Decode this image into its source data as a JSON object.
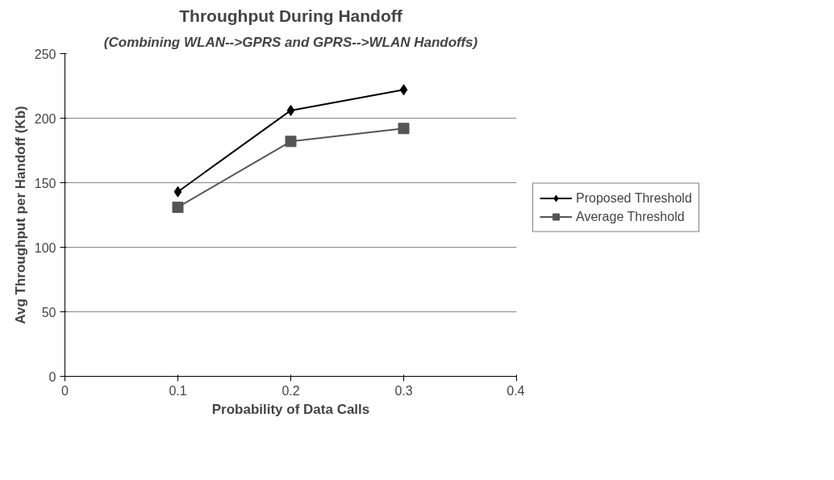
{
  "chart_data": {
    "type": "line",
    "title": "Throughput During Handoff",
    "subtitle": "(Combining WLAN-->GPRS and GPRS-->WLAN Handoffs)",
    "xlabel": "Probability of Data Calls",
    "ylabel": "Avg Throughput per Handoff (Kb)",
    "x": [
      0.1,
      0.2,
      0.3
    ],
    "series": [
      {
        "name": "Proposed Threshold",
        "color": "#000000",
        "marker": "diamond",
        "values": [
          143,
          206,
          222
        ]
      },
      {
        "name": "Average Threshold",
        "color": "#555555",
        "marker": "square",
        "values": [
          131,
          182,
          192
        ]
      }
    ],
    "xlim": [
      0,
      0.4
    ],
    "xticks": [
      0,
      0.1,
      0.2,
      0.3,
      0.4
    ],
    "ylim": [
      0,
      250
    ],
    "yticks": [
      0,
      50,
      100,
      150,
      200,
      250
    ],
    "grid": "y",
    "legend": "right"
  }
}
